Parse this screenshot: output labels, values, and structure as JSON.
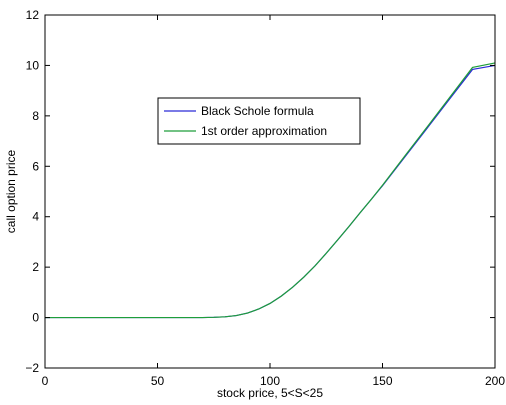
{
  "chart_data": {
    "type": "line",
    "title": "",
    "xlabel": "stock price, 5<S<25",
    "ylabel": "call option price",
    "xlim": [
      0,
      200
    ],
    "ylim": [
      -2,
      12
    ],
    "xticks": [
      0,
      50,
      100,
      150,
      200
    ],
    "xtick_labels": [
      "0",
      "50",
      "100",
      "150",
      "200"
    ],
    "yticks": [
      -2,
      0,
      2,
      4,
      6,
      8,
      10,
      12
    ],
    "ytick_labels": [
      "−2",
      "0",
      "2",
      "4",
      "6",
      "8",
      "10",
      "12"
    ],
    "grid": false,
    "legend_position": "upper-center",
    "series": [
      {
        "name": "Black Schole formula",
        "color": "#2b2bd6",
        "x": [
          0,
          10,
          20,
          30,
          40,
          50,
          60,
          70,
          75,
          80,
          85,
          90,
          95,
          100,
          105,
          110,
          115,
          120,
          125,
          130,
          135,
          140,
          145,
          150,
          160,
          170,
          180,
          190,
          200
        ],
        "y": [
          0,
          0,
          0,
          0,
          0,
          0,
          0,
          0,
          0.01,
          0.03,
          0.08,
          0.18,
          0.34,
          0.56,
          0.85,
          1.2,
          1.6,
          2.05,
          2.55,
          3.07,
          3.6,
          4.15,
          4.69,
          5.23,
          6.38,
          7.53,
          8.69,
          9.84,
          10.0
        ]
      },
      {
        "name": "1st order approximation",
        "color": "#1e9e3a",
        "x": [
          0,
          10,
          20,
          30,
          40,
          50,
          60,
          70,
          75,
          80,
          85,
          90,
          95,
          100,
          105,
          110,
          115,
          120,
          125,
          130,
          135,
          140,
          145,
          150,
          160,
          170,
          180,
          190,
          200
        ],
        "y": [
          0,
          0,
          0,
          0,
          0,
          0,
          0,
          0,
          0.01,
          0.03,
          0.08,
          0.18,
          0.34,
          0.56,
          0.85,
          1.2,
          1.6,
          2.05,
          2.55,
          3.07,
          3.6,
          4.15,
          4.69,
          5.25,
          6.42,
          7.58,
          8.75,
          9.92,
          10.1
        ]
      }
    ]
  }
}
